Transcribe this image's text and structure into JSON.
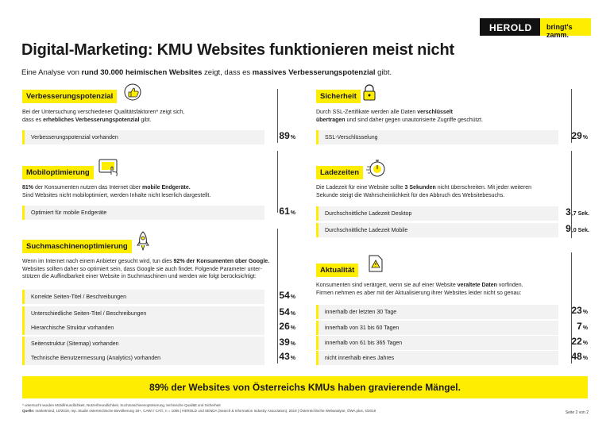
{
  "logo": {
    "brand": "HEROLD",
    "tagline": "bringt's zamm."
  },
  "title": "Digital-Marketing: KMU Websites funktionieren meist nicht",
  "subtitle": {
    "p1": "Eine Analyse von ",
    "b1": "rund 30.000 heimischen Websites",
    "p2": " zeigt, dass es ",
    "b2": "massives Verbesserungspotenzial",
    "p3": " gibt."
  },
  "sections": {
    "verbesserung": {
      "title": "Verbesserungspotenzial",
      "icon": "thumbs-up-icon",
      "desc_p1": "Bei der Untersuchung verschiedener Qualitätsfaktoren* zeigt sich,",
      "desc_p2": "dass es ",
      "desc_b": "erhebliches Verbesserungspotenzial",
      "desc_p3": " gibt.",
      "rows": [
        {
          "label": "Verbesserungspotenzial vorhanden",
          "value": "89",
          "unit": "%"
        }
      ]
    },
    "mobil": {
      "title": "Mobiloptimierung",
      "icon": "tablet-touch-icon",
      "desc_b1": "81%",
      "desc_p1": " der Konsumenten nutzen das Internet über ",
      "desc_b2": "mobile Endgeräte.",
      "desc_p2": "Sind Websites nicht mobiloptimiert, werden Inhalte nicht leserlich dargestellt.",
      "rows": [
        {
          "label": "Optimiert für mobile Endgeräte",
          "value": "61",
          "unit": "%"
        }
      ]
    },
    "seo": {
      "title": "Suchmaschinenoptimierung",
      "icon": "rocket-icon",
      "desc_p1": "Wenn im Internet nach einem Anbieter gesucht wird, tun dies ",
      "desc_b": "92% der Konsumenten über Google.",
      "desc_l2": "Websites sollten daher so optimiert sein, dass Google sie auch findet. Folgende Parameter unter-",
      "desc_l3": "stützen die Auffindbarkeit einer Website in Suchmaschinen und werden wie folgt berücksichtigt:",
      "rows": [
        {
          "label": "Korrekte Seiten-Titel / Beschreibungen",
          "value": "54",
          "unit": "%"
        },
        {
          "label": "Unterschiedliche Seiten-Titel / Beschreibungen",
          "value": "54",
          "unit": "%"
        },
        {
          "label": "Hierarchische Struktur vorhanden",
          "value": "26",
          "unit": "%"
        },
        {
          "label": "Seitenstruktur (Sitemap) vorhanden",
          "value": "39",
          "unit": "%"
        },
        {
          "label": "Technische Benutzermessung (Analytics) vorhanden",
          "value": "43",
          "unit": "%"
        }
      ]
    },
    "sicherheit": {
      "title": "Sicherheit",
      "icon": "padlock-icon",
      "desc_p1": "Durch SSL-Zertifikate werden alle Daten ",
      "desc_b1": "verschlüsselt",
      "desc_b2": "übertragen",
      "desc_p2": " und sind daher gegen unautorisierte Zugriffe geschützt.",
      "rows": [
        {
          "label": "SSL-Verschlüsselung",
          "value": "29",
          "unit": "%"
        }
      ]
    },
    "ladezeiten": {
      "title": "Ladezeiten",
      "icon": "stopwatch-icon",
      "desc_p1": "Die Ladezeit für eine Website sollte ",
      "desc_b": "3 Sekunden",
      "desc_p2": " nicht überschreiten. Mit jeder weiteren",
      "desc_l2": "Sekunde steigt die Wahrscheinlichkeit für den Abbruch des Websitebesuchs.",
      "rows": [
        {
          "label": "Durchschnittliche Ladezeit Desktop",
          "value": "3",
          "unit": ",7 Sek."
        },
        {
          "label": "Durchschnittliche Ladezeit Mobile",
          "value": "9",
          "unit": ",0 Sek."
        }
      ]
    },
    "aktualitaet": {
      "title": "Aktualität",
      "icon": "document-warning-icon",
      "desc_p1": "Konsumenten sind verärgert, wenn sie auf einer Website ",
      "desc_b": "veraltete Daten",
      "desc_p2": " vorfinden.",
      "desc_l2": "Firmen nehmen es aber mit der Aktualisierung ihrer Websites leider nicht so genau:",
      "rows": [
        {
          "label": "innerhalb der letzten 30 Tage",
          "value": "23",
          "unit": "%"
        },
        {
          "label": "innerhalb von 31 bis 60 Tagen",
          "value": "7",
          "unit": "%"
        },
        {
          "label": "innerhalb von 61 bis 365 Tagen",
          "value": "22",
          "unit": "%"
        },
        {
          "label": "nicht innerhalb eines Jahres",
          "value": "48",
          "unit": "%"
        }
      ]
    }
  },
  "banner": "89% der Websites von Österreichs KMUs haben gravierende Mängel.",
  "footnote": "* untersucht wurden Mobilfreundlichkeit, Nutzerfreundlichkeit, Suchmaschinenoptimierung, technische Qualität und Sicherheit",
  "source_label": "Quelle:",
  "source": " marketmind, 10/2018, rep. Studie österreichische Bevölkerung 18+, CAWI / CATI, n = 1065 | HEROLD und SENDA (Search & Information Industry Association), 2018 | Österreichische Webanalyse, ÖWA plus, 4/2018",
  "page": "Seite 2 von 2",
  "colors": {
    "accent": "#ffed00",
    "dark": "#111111"
  }
}
